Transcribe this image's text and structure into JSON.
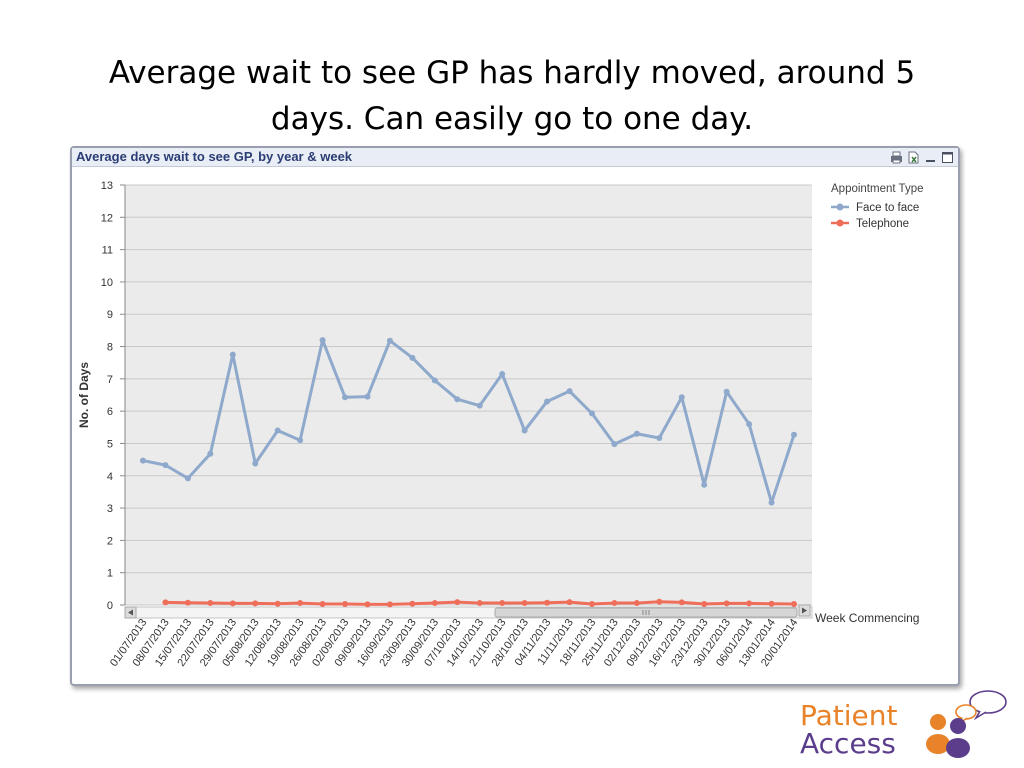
{
  "slide": {
    "title_line1": "Average wait to see GP has hardly moved, around 5",
    "title_line2": "days.  Can easily go to one day."
  },
  "chart_window": {
    "caption": "Average days wait to see GP, by year & week",
    "icons": [
      "print-icon",
      "excel-export-icon",
      "minimize-icon",
      "maximize-icon"
    ]
  },
  "logo": {
    "line1": "Patient",
    "line2": "Access",
    "colors": {
      "orange": "#e8832a",
      "purple": "#5b3d8c"
    }
  },
  "chart_data": {
    "type": "line",
    "title": "Average days wait to see GP, by year & week",
    "xlabel": "Week Commencing",
    "ylabel": "No. of Days",
    "ylim": [
      0,
      13
    ],
    "yticks": [
      0,
      1,
      2,
      3,
      4,
      5,
      6,
      7,
      8,
      9,
      10,
      11,
      12,
      13
    ],
    "grid": true,
    "legend": {
      "title": "Appointment Type",
      "position": "top-right"
    },
    "categories": [
      "01/07/2013",
      "08/07/2013",
      "15/07/2013",
      "22/07/2013",
      "29/07/2013",
      "05/08/2013",
      "12/08/2013",
      "19/08/2013",
      "26/08/2013",
      "02/09/2013",
      "09/09/2013",
      "16/09/2013",
      "23/09/2013",
      "30/09/2013",
      "07/10/2013",
      "14/10/2013",
      "21/10/2013",
      "28/10/2013",
      "04/11/2013",
      "11/11/2013",
      "18/11/2013",
      "25/11/2013",
      "02/12/2013",
      "09/12/2013",
      "16/12/2013",
      "23/12/2013",
      "30/12/2013",
      "06/01/2014",
      "13/01/2014",
      "20/01/2014"
    ],
    "series": [
      {
        "name": "Face to face",
        "color": "#8ea9cb",
        "values": [
          4.47,
          4.33,
          3.92,
          4.68,
          7.75,
          4.38,
          5.4,
          5.1,
          8.2,
          6.43,
          6.45,
          8.18,
          7.65,
          6.95,
          6.37,
          6.17,
          7.15,
          5.4,
          6.3,
          6.62,
          5.93,
          4.98,
          5.3,
          5.17,
          6.43,
          3.72,
          6.6,
          5.6,
          3.17,
          5.27
        ]
      },
      {
        "name": "Telephone",
        "color": "#ef6e5a",
        "values": [
          null,
          0.08,
          0.07,
          0.06,
          0.05,
          0.05,
          0.04,
          0.06,
          0.03,
          0.03,
          0.02,
          0.02,
          0.04,
          0.06,
          0.09,
          0.06,
          0.06,
          0.06,
          0.07,
          0.09,
          0.03,
          0.06,
          0.06,
          0.1,
          0.08,
          0.03,
          0.05,
          0.05,
          0.04,
          0.03
        ]
      }
    ]
  }
}
